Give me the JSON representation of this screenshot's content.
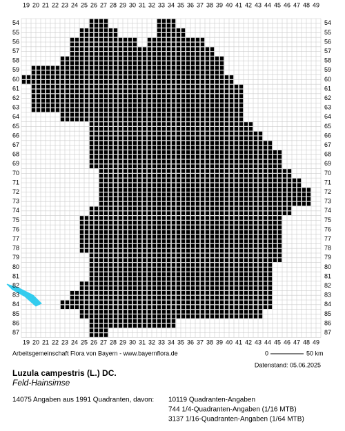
{
  "map": {
    "columns": [
      19,
      20,
      21,
      22,
      23,
      24,
      25,
      26,
      27,
      28,
      29,
      30,
      31,
      32,
      33,
      34,
      35,
      36,
      37,
      38,
      39,
      40,
      41,
      42,
      43,
      44,
      45,
      46,
      47,
      48,
      49
    ],
    "rows": [
      54,
      55,
      56,
      57,
      58,
      59,
      60,
      61,
      62,
      63,
      64,
      65,
      66,
      67,
      68,
      69,
      70,
      71,
      72,
      73,
      74,
      75,
      76,
      77,
      78,
      79,
      80,
      81,
      82,
      83,
      84,
      85,
      86,
      87
    ],
    "occupied": [
      [
        54,
        26,
        27
      ],
      [
        54,
        33,
        34
      ],
      [
        55,
        25,
        28
      ],
      [
        55,
        33,
        35
      ],
      [
        56,
        24,
        30
      ],
      [
        56,
        32,
        37
      ],
      [
        57,
        24,
        38
      ],
      [
        58,
        23,
        39
      ],
      [
        59,
        20,
        39
      ],
      [
        60,
        19,
        40
      ],
      [
        61,
        20,
        41
      ],
      [
        62,
        20,
        41
      ],
      [
        63,
        20,
        41
      ],
      [
        64,
        23,
        41
      ],
      [
        65,
        26,
        42
      ],
      [
        66,
        26,
        43
      ],
      [
        67,
        26,
        44
      ],
      [
        68,
        26,
        45
      ],
      [
        69,
        26,
        45
      ],
      [
        70,
        27,
        46
      ],
      [
        71,
        27,
        47
      ],
      [
        72,
        27,
        48
      ],
      [
        73,
        27,
        48
      ],
      [
        74,
        26,
        46
      ],
      [
        75,
        25,
        45
      ],
      [
        76,
        25,
        45
      ],
      [
        77,
        25,
        45
      ],
      [
        78,
        25,
        45
      ],
      [
        79,
        26,
        45
      ],
      [
        80,
        26,
        44
      ],
      [
        81,
        26,
        44
      ],
      [
        82,
        25,
        44
      ],
      [
        83,
        24,
        44
      ],
      [
        84,
        23,
        44
      ],
      [
        85,
        25,
        43
      ],
      [
        86,
        26,
        34
      ],
      [
        87,
        26,
        27
      ]
    ],
    "credit": "Arbeitsgemeinschaft Flora von Bayern - www.bayernflora.de",
    "scale": {
      "start": "0",
      "end": "50 km"
    },
    "date": "Datenstand: 05.06.2025",
    "species": "Luzula campestris (L.) DC.",
    "common_name": "Feld-Hainsimse",
    "summary": "14075 Angaben aus 1991 Quadranten, davon:",
    "breakdown": [
      "10119 Quadranten-Angaben",
      "744 1/4-Quadranten-Angaben (1/16 MTB)",
      "3137 1/16-Quadranten-Angaben (1/64 MTB)"
    ]
  }
}
